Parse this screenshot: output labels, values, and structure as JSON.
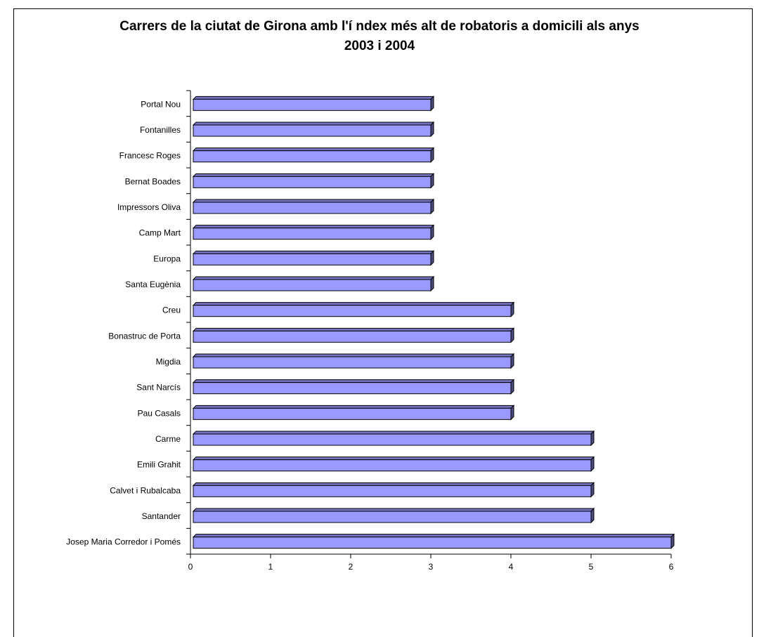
{
  "chart_data": {
    "type": "bar",
    "orientation": "horizontal",
    "title_lines": [
      "Carrers de la ciutat de Girona amb l'í ndex més alt de robatoris a domicili als anys",
      "2003 i 2004"
    ],
    "categories": [
      "Portal Nou",
      "Fontanilles",
      "Francesc Roges",
      "Bernat Boades",
      "Impressors Oliva",
      "Camp Mart",
      "Europa",
      "Santa Eugènia",
      "Creu",
      "Bonastruc de Porta",
      "Migdia",
      "Sant Narcís",
      "Pau Casals",
      "Carme",
      "Emili Grahit",
      "Calvet i Rubalcaba",
      "Santander",
      "Josep Maria Corredor i Pomés"
    ],
    "values": [
      3,
      3,
      3,
      3,
      3,
      3,
      3,
      3,
      4,
      4,
      4,
      4,
      4,
      5,
      5,
      5,
      5,
      6
    ],
    "xlim": [
      0,
      6
    ],
    "x_ticks": [
      "0",
      "1",
      "2",
      "3",
      "4",
      "5",
      "6"
    ],
    "grid": false,
    "legend": "none",
    "bar_color": "#9999ff",
    "bar_side_color": "#4c4c80",
    "bar_top_color": "#7373bf"
  }
}
